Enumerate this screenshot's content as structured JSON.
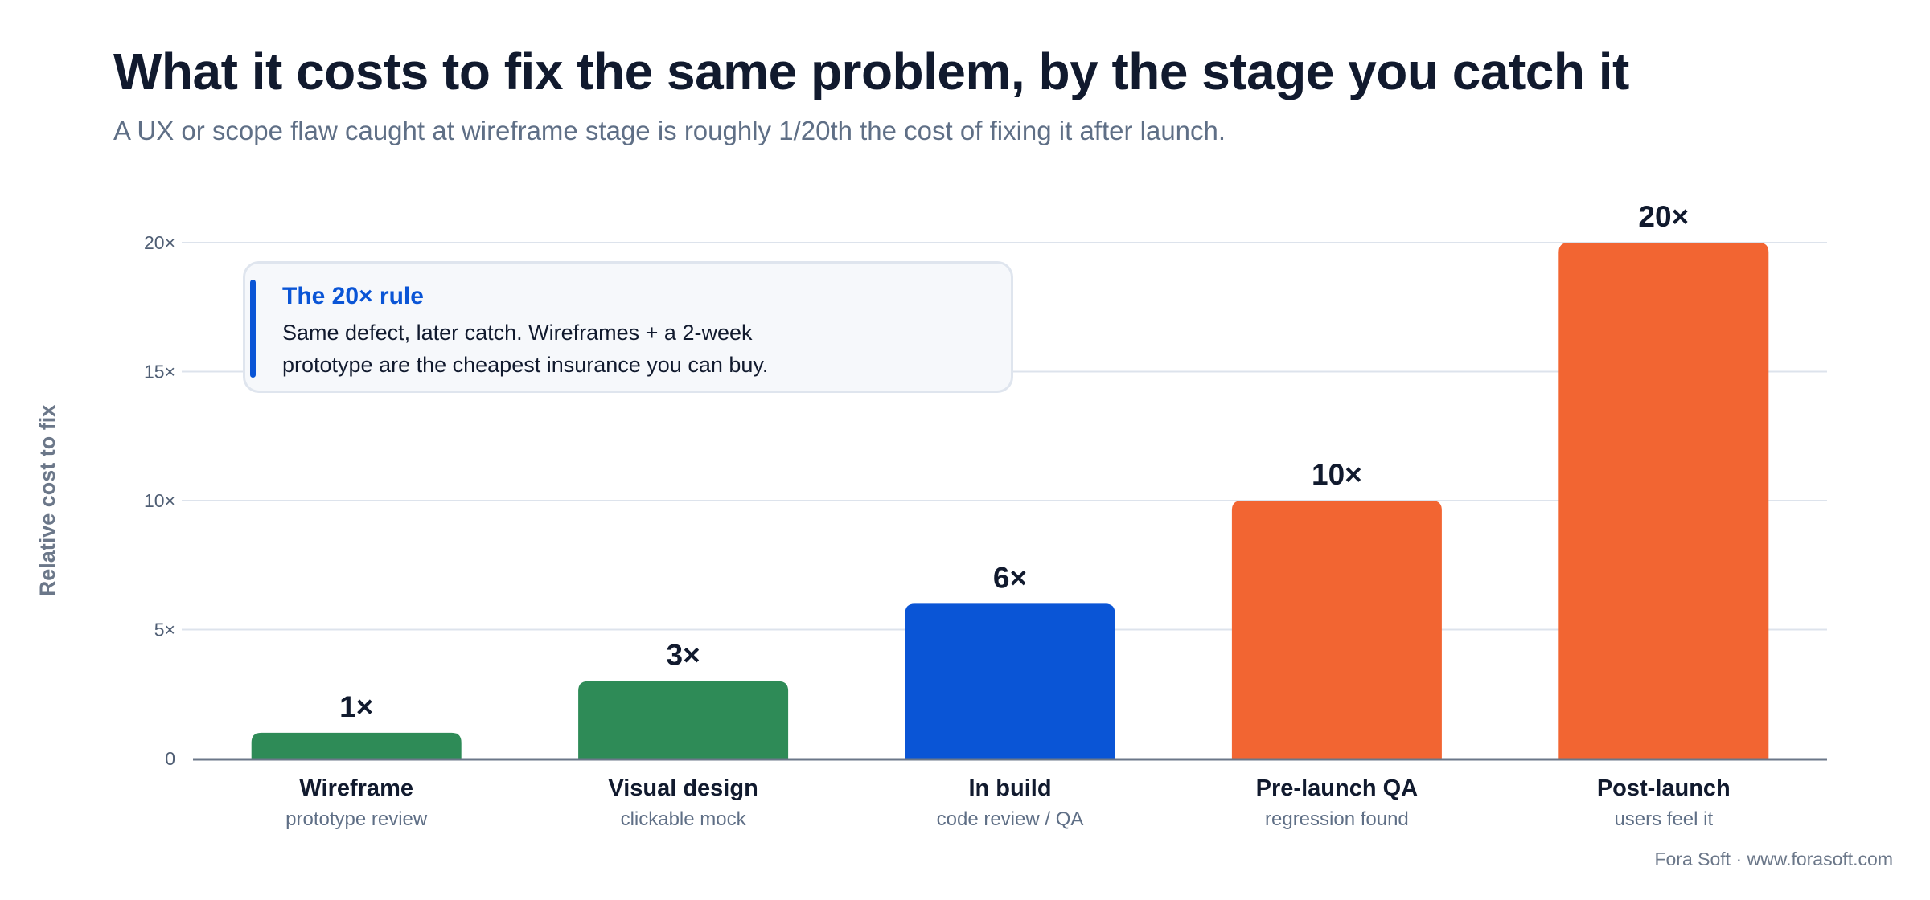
{
  "header": {
    "title": "What it costs to fix the same problem, by the stage you catch it",
    "subtitle": "A UX or scope flaw caught at wireframe stage is roughly 1/20th the cost of fixing it after launch."
  },
  "callout": {
    "title": "The 20× rule",
    "body": "Same defect, later catch. Wireframes + a 2-week prototype are the cheapest insurance you can buy.",
    "accent_color": "#0a55d6"
  },
  "footer": {
    "credit": "Fora Soft · www.forasoft.com"
  },
  "chart_data": {
    "type": "bar",
    "ylabel": "Relative cost to fix",
    "ylim": [
      0,
      20
    ],
    "yticks": [
      0,
      5,
      10,
      15,
      20
    ],
    "ytick_labels": [
      "0",
      "5×",
      "10×",
      "15×",
      "20×"
    ],
    "grid": true,
    "categories": [
      "Wireframe",
      "Visual design",
      "In build",
      "Pre-launch QA",
      "Post-launch"
    ],
    "category_sublabels": [
      "prototype review",
      "clickable mock",
      "code review / QA",
      "regression found",
      "users feel it"
    ],
    "values": [
      1,
      3,
      6,
      10,
      20
    ],
    "value_labels": [
      "1×",
      "3×",
      "6×",
      "10×",
      "20×"
    ],
    "bar_colors": [
      "#2e8b57",
      "#2e8b57",
      "#0a55d6",
      "#f26532",
      "#f26532"
    ]
  }
}
